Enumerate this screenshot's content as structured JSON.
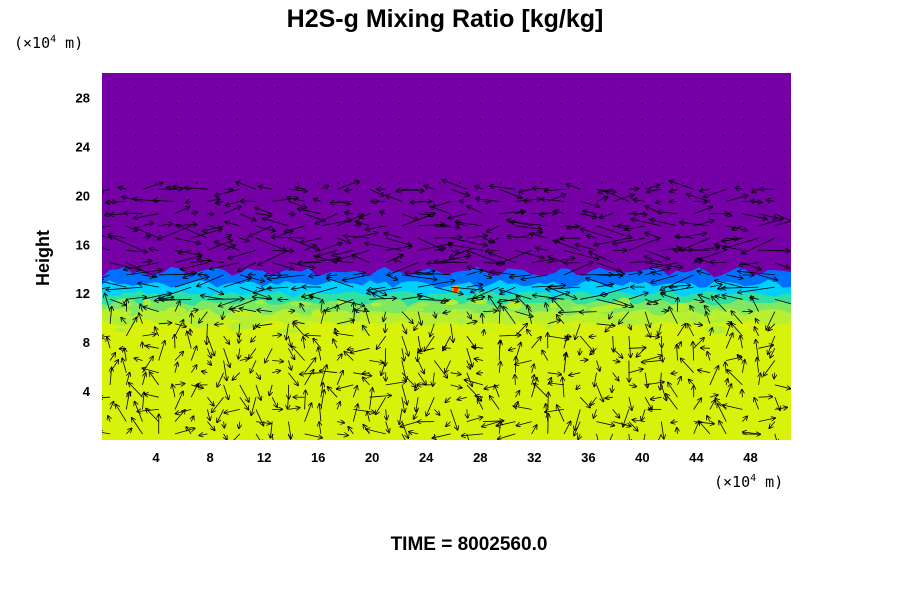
{
  "chart_data": {
    "type": "heatmap",
    "title": "H2S-g Mixing Ratio [kg/kg]",
    "ylabel": "Height",
    "x_unit": {
      "prefix": "(×10",
      "exp": "4",
      "suffix": " m)"
    },
    "y_unit": {
      "prefix": "(×10",
      "exp": "4",
      "suffix": " m)"
    },
    "xlim": [
      0,
      51
    ],
    "ylim": [
      0,
      30
    ],
    "x_ticks": [
      4,
      8,
      12,
      16,
      20,
      24,
      28,
      32,
      36,
      40,
      44,
      48
    ],
    "y_ticks": [
      4,
      8,
      12,
      16,
      20,
      24,
      28
    ],
    "time_label": "TIME = 8002560.0",
    "field": {
      "upper_color": "#7400a6",
      "lower_color": "#d9f20c",
      "transition_height": 12,
      "transition_colors": [
        "#7400a6",
        "#0070ff",
        "#00d0ff",
        "#30e0a0",
        "#80e860",
        "#b8f030",
        "#d9f20c"
      ],
      "hotspot": {
        "x": 26.2,
        "y": 12.3,
        "color": "#ff3000"
      }
    },
    "wind_vectors": {
      "shown": true,
      "color": "#000000",
      "x_spacing": 1.2,
      "y_spacing": 1.0,
      "y_range": [
        0,
        21
      ]
    }
  }
}
